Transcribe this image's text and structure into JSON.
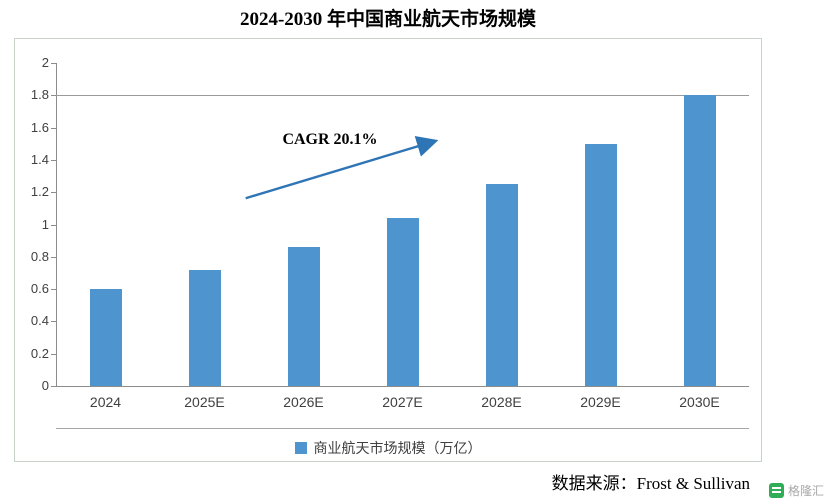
{
  "title": "2024-2030 年中国商业航天市场规模",
  "chart_data": {
    "type": "bar",
    "categories": [
      "2024",
      "2025E",
      "2026E",
      "2027E",
      "2028E",
      "2029E",
      "2030E"
    ],
    "values": [
      0.6,
      0.72,
      0.86,
      1.04,
      1.25,
      1.5,
      1.8
    ],
    "ylim": [
      0,
      2
    ],
    "yticks": [
      "0",
      "0.2",
      "0.4",
      "0.6",
      "0.8",
      "1",
      "1.2",
      "1.4",
      "1.6",
      "1.8",
      "2"
    ],
    "gridline_at": 1.8,
    "legend": "商业航天市场规模（万亿）",
    "annotation": "CAGR 20.1%",
    "bar_color": "#4E95D0",
    "arrow_color": "#2E75B6"
  },
  "source": "数据来源：Frost & Sullivan",
  "watermark": {
    "icon": "gelonghui-green-logo",
    "text": "格隆汇"
  }
}
